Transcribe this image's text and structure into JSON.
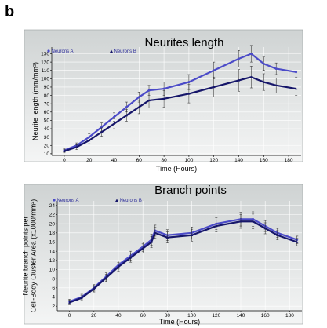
{
  "panel_label": "b",
  "colors": {
    "series_a": "#4b4bc8",
    "series_b": "#16166a",
    "error_bar": "#222222",
    "plot_bg_top": "#cfd3d3",
    "plot_bg_bottom": "#f4f5f5"
  },
  "chart_data": [
    {
      "type": "line",
      "title": "Neurites length",
      "xlabel": "Time (Hours)",
      "ylabel": "Neurite length (mm/mm²)",
      "xlim": [
        -10,
        190
      ],
      "ylim": [
        8,
        138
      ],
      "xticks": [
        0,
        20,
        40,
        60,
        80,
        100,
        120,
        140,
        160,
        180
      ],
      "yticks": [
        10,
        20,
        30,
        40,
        50,
        60,
        70,
        80,
        90,
        100,
        110,
        120,
        130
      ],
      "grid": true,
      "legend_position": "top-left",
      "series": [
        {
          "name": "Neurons A",
          "marker": "circle",
          "x": [
            0,
            10,
            20,
            30,
            40,
            50,
            60,
            68,
            80,
            100,
            120,
            140,
            150,
            160,
            170,
            186
          ],
          "y": [
            14,
            20,
            30,
            42,
            54,
            66,
            78,
            86,
            88,
            96,
            110,
            124,
            130,
            118,
            112,
            108
          ],
          "err": [
            2,
            3,
            4,
            5,
            5,
            6,
            6,
            6,
            8,
            9,
            10,
            10,
            10,
            8,
            7,
            6
          ]
        },
        {
          "name": "Neurons B",
          "marker": "triangle",
          "x": [
            0,
            10,
            20,
            30,
            40,
            50,
            60,
            68,
            80,
            100,
            120,
            140,
            150,
            160,
            170,
            186
          ],
          "y": [
            13,
            18,
            26,
            36,
            46,
            56,
            66,
            74,
            76,
            82,
            90,
            98,
            102,
            96,
            92,
            88
          ],
          "err": [
            2,
            3,
            4,
            5,
            6,
            7,
            8,
            9,
            10,
            11,
            12,
            13,
            13,
            10,
            9,
            8
          ]
        }
      ]
    },
    {
      "type": "line",
      "title": "Branch points",
      "xlabel": "Time (Hours)",
      "ylabel": "Neurite branch points per Cell-Body Cluster Area (x1000/mm²)",
      "xlim": [
        -10,
        190
      ],
      "ylim": [
        1,
        25
      ],
      "xticks": [
        0,
        20,
        40,
        60,
        80,
        100,
        120,
        140,
        160,
        180
      ],
      "yticks": [
        2,
        4,
        6,
        8,
        10,
        12,
        14,
        16,
        18,
        20,
        22,
        24
      ],
      "grid": true,
      "legend_position": "top-left",
      "series": [
        {
          "name": "Neurons A",
          "marker": "circle",
          "x": [
            0,
            10,
            20,
            30,
            40,
            50,
            60,
            67,
            70,
            80,
            100,
            120,
            140,
            150,
            160,
            170,
            186
          ],
          "y": [
            3,
            4,
            6,
            8.5,
            11,
            13,
            15,
            16.5,
            18.5,
            17.5,
            18,
            20,
            21,
            21,
            19.5,
            18,
            16.5
          ],
          "err": [
            0.5,
            0.6,
            0.7,
            0.8,
            0.9,
            1,
            1,
            1.2,
            1.2,
            1.2,
            1.3,
            1.3,
            1.5,
            1.6,
            1.2,
            1,
            0.8
          ]
        },
        {
          "name": "Neurons B",
          "marker": "triangle",
          "x": [
            0,
            10,
            20,
            30,
            40,
            50,
            60,
            67,
            70,
            80,
            100,
            120,
            140,
            150,
            160,
            170,
            186
          ],
          "y": [
            2.8,
            3.8,
            5.8,
            8.2,
            10.6,
            12.6,
            14.6,
            16,
            18,
            17,
            17.5,
            19.5,
            20.5,
            20.5,
            19,
            17.5,
            16
          ],
          "err": [
            0.5,
            0.6,
            0.7,
            0.8,
            0.9,
            1,
            1,
            1.2,
            1.2,
            1.2,
            1.3,
            1.3,
            1.5,
            1.6,
            1.2,
            1,
            0.8
          ]
        }
      ]
    }
  ]
}
